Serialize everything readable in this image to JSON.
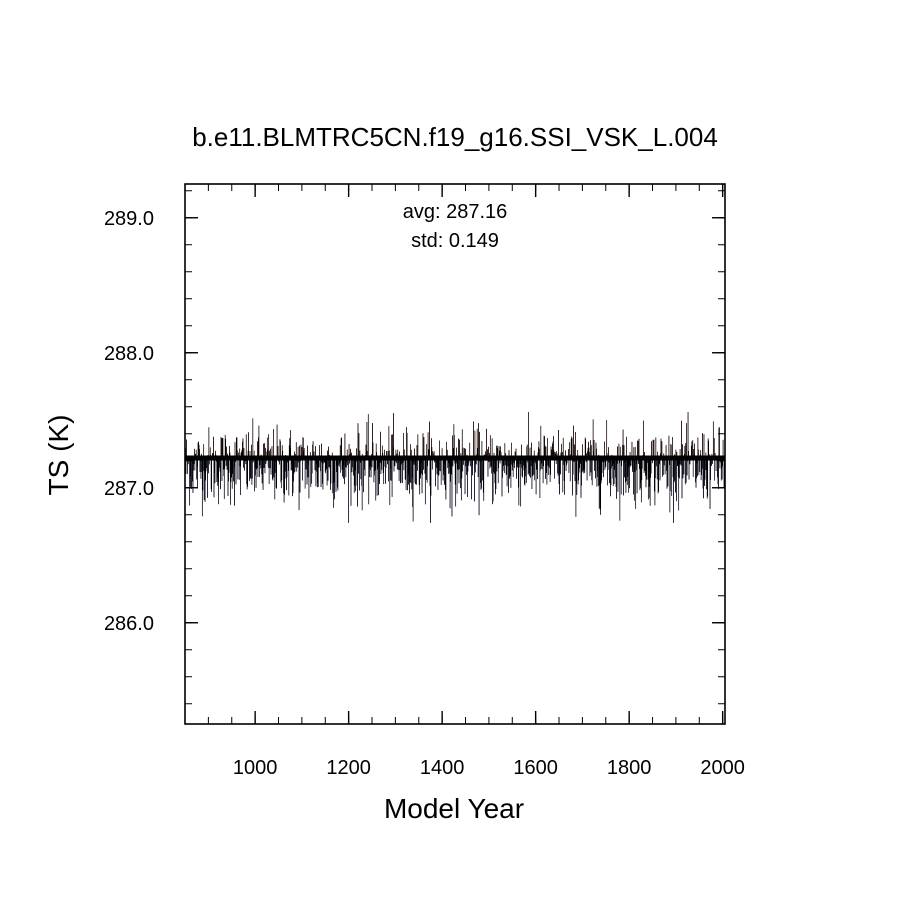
{
  "chart_data": {
    "type": "bar",
    "title": "b.e11.BLMTRC5CN.f19_g16.SSI_VSK_L.004",
    "xlabel": "Model Year",
    "ylabel": "TS (K)",
    "xlim": [
      850,
      2005
    ],
    "ylim": [
      285.25,
      289.25
    ],
    "baseline": 287.22,
    "x_ticks": [
      1000,
      1200,
      1400,
      1600,
      1800,
      2000
    ],
    "x_tick_labels": [
      "1000",
      "1200",
      "1400",
      "1600",
      "1800",
      "2000"
    ],
    "y_ticks": [
      286.0,
      287.0,
      288.0,
      289.0
    ],
    "y_tick_labels": [
      "286.0",
      "287.0",
      "288.0",
      "289.0"
    ],
    "x_minor_step": 50,
    "y_minor_step": 0.2,
    "grid": false,
    "legend": "none",
    "annotations": {
      "avg": "avg: 287.16",
      "std": "std:  0.149"
    },
    "series": [
      {
        "x_start": 850,
        "x_end": 2005,
        "step": 1,
        "mean": 287.16,
        "std": 0.149,
        "min_approx": 286.74,
        "max_approx": 287.56,
        "color_above": "#8b1a1a",
        "color_below": "#1a1a8b",
        "line_color": "#000000"
      }
    ]
  }
}
